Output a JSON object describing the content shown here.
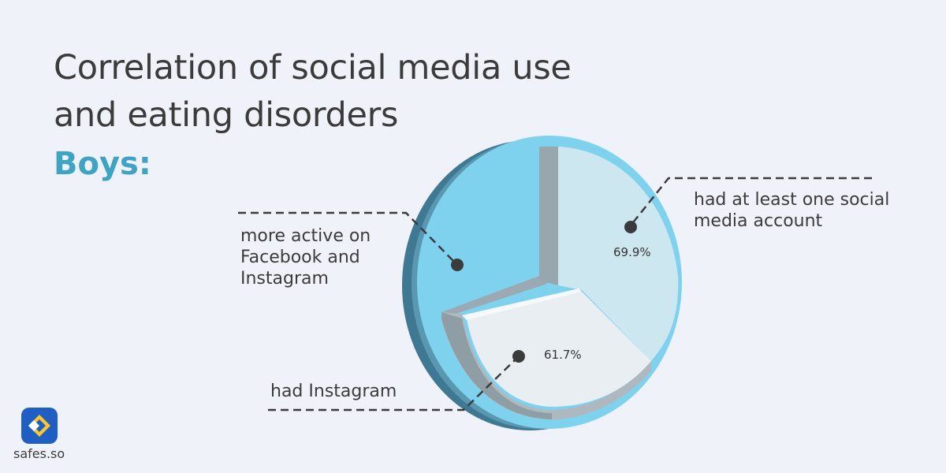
{
  "title": {
    "line1": "Correlation of social media use",
    "line2": "and eating disorders"
  },
  "subtitle": "Boys:",
  "brand": {
    "name": "safes.so"
  },
  "colors": {
    "base": "#7fd2ee",
    "wedge_account": "#cde7f1",
    "wedge_instagram": "#e9eef3",
    "side_dark": "#3f7893",
    "accent_title": "#3fa3c3"
  },
  "chart_data": {
    "type": "pie",
    "title": "",
    "categories": [
      "more active on Facebook and Instagram",
      "had at least one social media account",
      "had Instagram"
    ],
    "slices": [
      {
        "label": "more active on Facebook and Instagram",
        "value": null
      },
      {
        "label": "had at least one social media account",
        "value": 69.9,
        "display": "69.9%"
      },
      {
        "label": "had Instagram",
        "value": 61.7,
        "display": "61.7%"
      }
    ],
    "legend": "none",
    "style": "3d exploded pie with dashed callout leaders"
  }
}
